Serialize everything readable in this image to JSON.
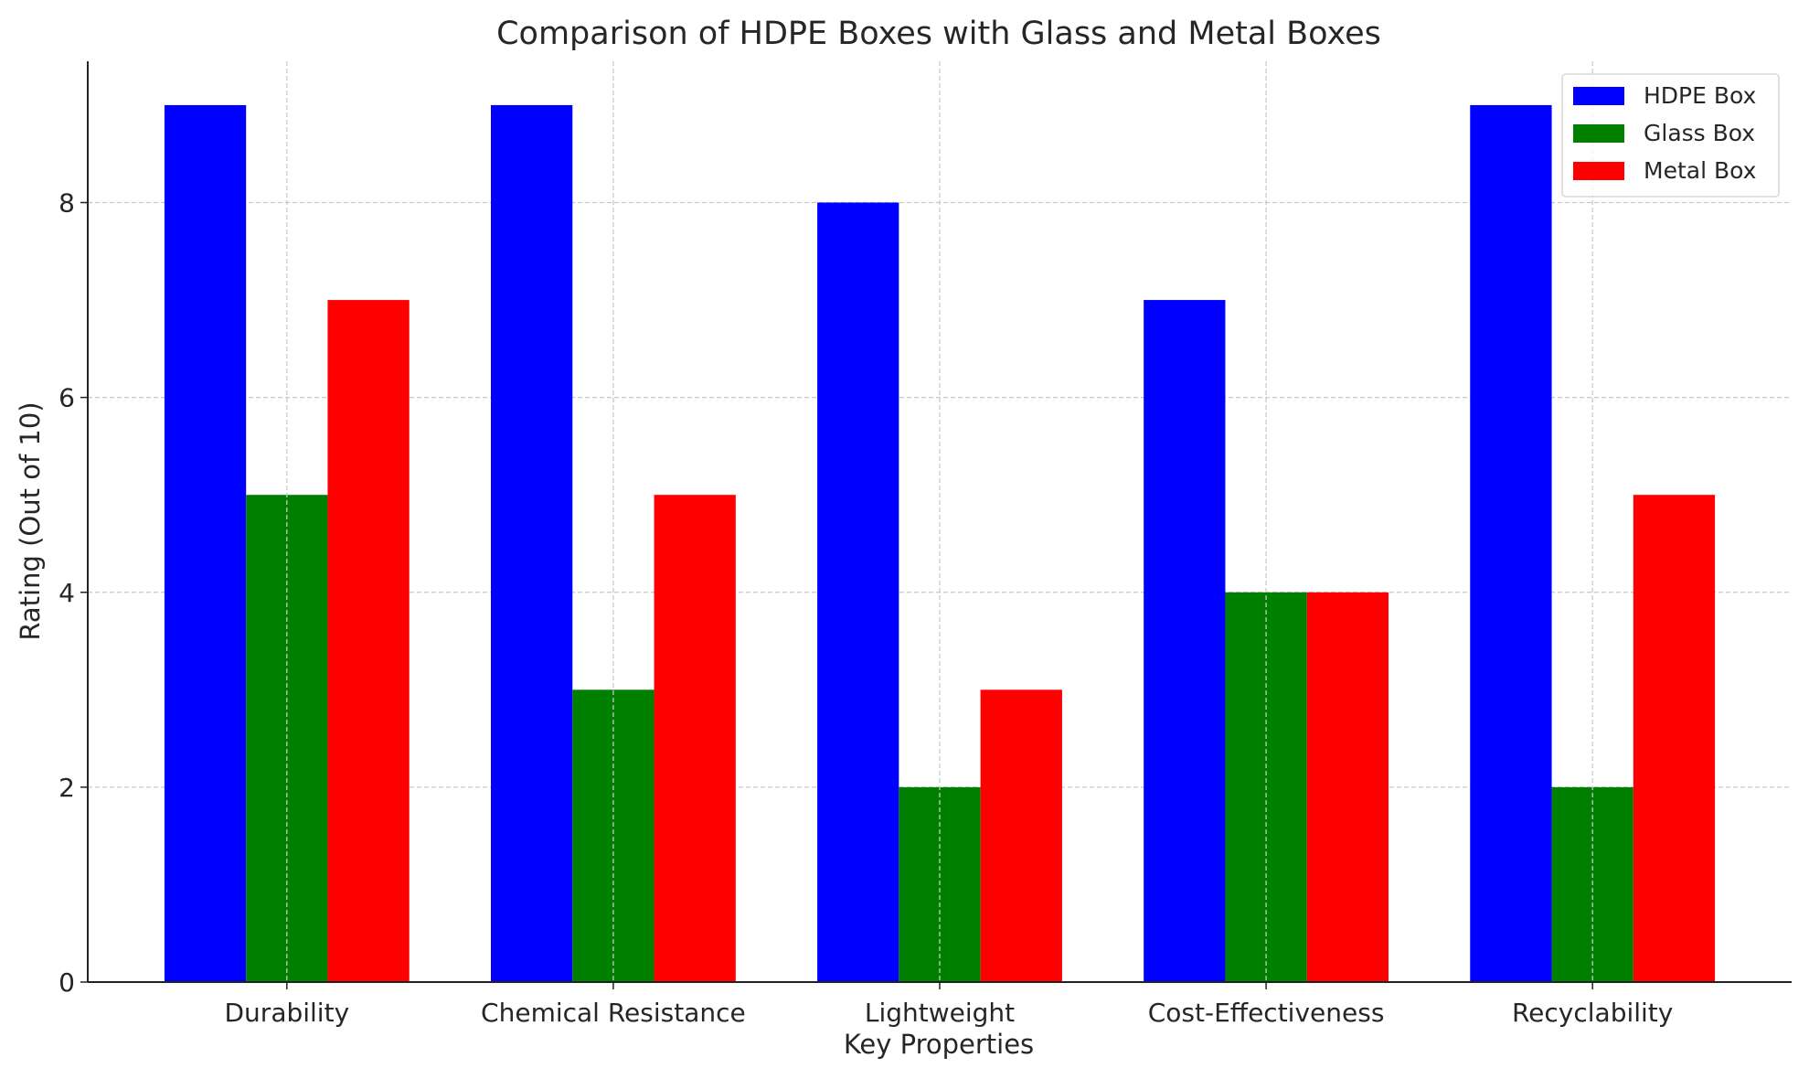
{
  "chart_data": {
    "type": "bar",
    "title": "Comparison of HDPE Boxes with Glass and Metal Boxes",
    "xlabel": "Key Properties",
    "ylabel": "Rating (Out of 10)",
    "categories": [
      "Durability",
      "Chemical Resistance",
      "Lightweight",
      "Cost-Effectiveness",
      "Recyclability"
    ],
    "series": [
      {
        "name": "HDPE Box",
        "color": "#0000ff",
        "values": [
          9,
          9,
          8,
          7,
          9
        ]
      },
      {
        "name": "Glass Box",
        "color": "#008000",
        "values": [
          5,
          3,
          2,
          4,
          2
        ]
      },
      {
        "name": "Metal Box",
        "color": "#ff0000",
        "values": [
          7,
          5,
          3,
          4,
          5
        ]
      }
    ],
    "ylim": [
      0,
      9.45
    ],
    "yticks": [
      "0",
      "2",
      "4",
      "6",
      "8"
    ],
    "grid": true,
    "legend": "top-right"
  }
}
